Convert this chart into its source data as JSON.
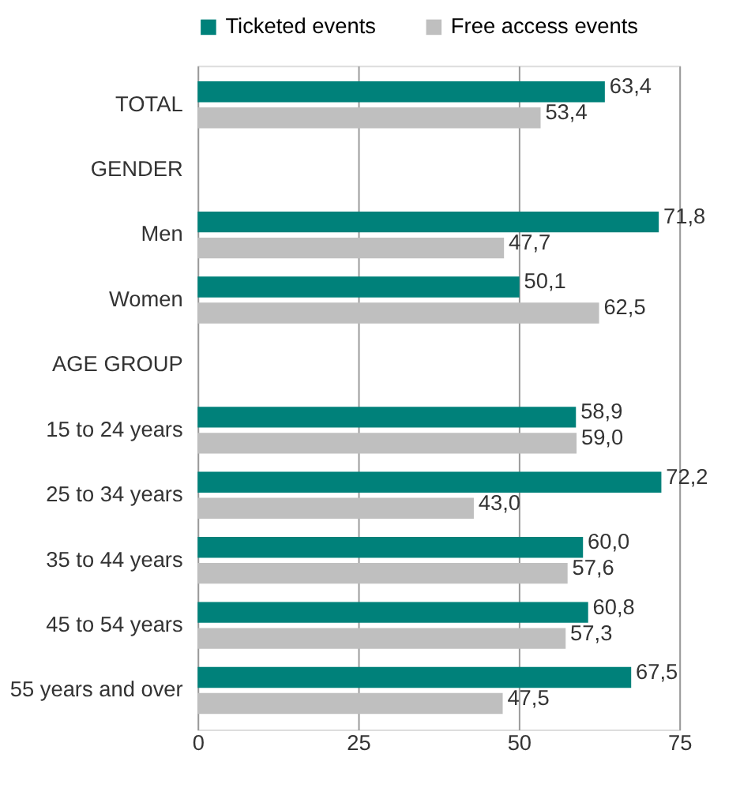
{
  "chart_data": {
    "type": "bar",
    "orientation": "horizontal",
    "categories": [
      "TOTAL",
      "GENDER",
      "Men",
      "Women",
      "AGE GROUP",
      "15 to 24 years",
      "25 to 34 years",
      "35 to 44 years",
      "45 to 54 years",
      "55 years and over"
    ],
    "series": [
      {
        "name": "Ticketed events",
        "color": "#00817a",
        "values": [
          63.4,
          null,
          71.8,
          50.1,
          null,
          58.9,
          72.2,
          60.0,
          60.8,
          67.5
        ],
        "value_labels": [
          "63,4",
          null,
          "71,8",
          "50,1",
          null,
          "58,9",
          "72,2",
          "60,0",
          "60,8",
          "67,5"
        ]
      },
      {
        "name": "Free access events",
        "color": "#bfbfbf",
        "values": [
          53.4,
          null,
          47.7,
          62.5,
          null,
          59.0,
          43.0,
          57.6,
          57.3,
          47.5
        ],
        "value_labels": [
          "53,4",
          null,
          "47,7",
          "62,5",
          null,
          "59,0",
          "43,0",
          "57,6",
          "57,3",
          "47,5"
        ]
      }
    ],
    "xlim": [
      0,
      75
    ],
    "xticks": [
      0,
      25,
      50,
      75
    ],
    "grid": "x",
    "legend": "top"
  }
}
